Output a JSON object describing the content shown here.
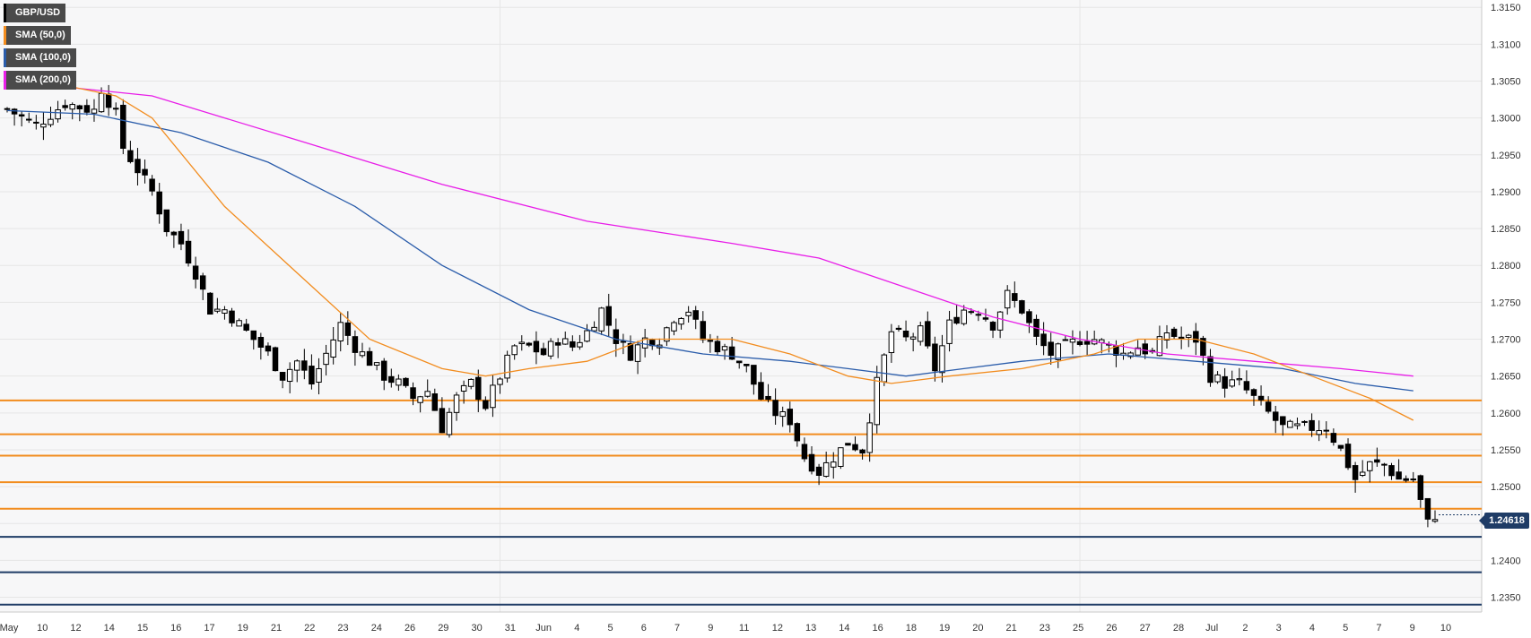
{
  "chart_data": {
    "type": "candlestick",
    "symbol": "GBP/USD",
    "legend": [
      {
        "label": "GBP/USD",
        "color": "#000000"
      },
      {
        "label": "SMA (50,0)",
        "color": "#f28c1e"
      },
      {
        "label": "SMA (100,0)",
        "color": "#2a5caa"
      },
      {
        "label": "SMA (200,0)",
        "color": "#e81ee8"
      }
    ],
    "ylim": [
      1.233,
      1.316
    ],
    "y_ticks": [
      "1.3150",
      "1.3100",
      "1.3050",
      "1.3000",
      "1.2950",
      "1.2900",
      "1.2850",
      "1.2800",
      "1.2750",
      "1.2700",
      "1.2650",
      "1.2600",
      "1.2550",
      "1.2500",
      "1.2450",
      "1.2400",
      "1.2350"
    ],
    "x_labels": [
      "May",
      "10",
      "12",
      "14",
      "15",
      "16",
      "17",
      "19",
      "21",
      "22",
      "23",
      "24",
      "26",
      "29",
      "30",
      "31",
      "Jun",
      "4",
      "5",
      "6",
      "7",
      "9",
      "11",
      "12",
      "13",
      "14",
      "16",
      "18",
      "19",
      "20",
      "21",
      "23",
      "25",
      "26",
      "27",
      "28",
      "Jul",
      "2",
      "3",
      "4",
      "5",
      "7",
      "9",
      "10"
    ],
    "current_price": "1.24618",
    "horizontal_levels": [
      {
        "value": 1.2617,
        "color": "#f28c1e"
      },
      {
        "value": 1.2571,
        "color": "#f28c1e"
      },
      {
        "value": 1.2542,
        "color": "#f28c1e"
      },
      {
        "value": 1.2506,
        "color": "#f28c1e"
      },
      {
        "value": 1.247,
        "color": "#f28c1e"
      },
      {
        "value": 1.2432,
        "color": "#1f3c66"
      },
      {
        "value": 1.2384,
        "color": "#1f3c66"
      },
      {
        "value": 1.234,
        "color": "#1f3c66"
      }
    ],
    "close_path": [
      [
        0,
        1.3012
      ],
      [
        4,
        1.299
      ],
      [
        8,
        1.302
      ],
      [
        12,
        1.301
      ],
      [
        13,
        1.304
      ],
      [
        15,
        1.3005
      ],
      [
        16,
        1.296
      ],
      [
        18,
        1.293
      ],
      [
        20,
        1.29
      ],
      [
        22,
        1.285
      ],
      [
        24,
        1.283
      ],
      [
        26,
        1.279
      ],
      [
        28,
        1.274
      ],
      [
        30,
        1.274
      ],
      [
        32,
        1.272
      ],
      [
        34,
        1.27
      ],
      [
        36,
        1.268
      ],
      [
        38,
        1.265
      ],
      [
        40,
        1.267
      ],
      [
        42,
        1.264
      ],
      [
        44,
        1.268
      ],
      [
        46,
        1.272
      ],
      [
        48,
        1.269
      ],
      [
        50,
        1.267
      ],
      [
        52,
        1.265
      ],
      [
        54,
        1.264
      ],
      [
        56,
        1.262
      ],
      [
        58,
        1.263
      ],
      [
        60,
        1.258
      ],
      [
        62,
        1.262
      ],
      [
        64,
        1.264
      ],
      [
        66,
        1.261
      ],
      [
        68,
        1.265
      ],
      [
        70,
        1.269
      ],
      [
        72,
        1.269
      ],
      [
        74,
        1.268
      ],
      [
        76,
        1.27
      ],
      [
        78,
        1.269
      ],
      [
        80,
        1.271
      ],
      [
        82,
        1.274
      ],
      [
        84,
        1.27
      ],
      [
        86,
        1.268
      ],
      [
        88,
        1.27
      ],
      [
        90,
        1.27
      ],
      [
        92,
        1.273
      ],
      [
        94,
        1.274
      ],
      [
        96,
        1.27
      ],
      [
        98,
        1.269
      ],
      [
        100,
        1.268
      ],
      [
        102,
        1.266
      ],
      [
        104,
        1.262
      ],
      [
        106,
        1.26
      ],
      [
        108,
        1.259
      ],
      [
        110,
        1.254
      ],
      [
        112,
        1.252
      ],
      [
        114,
        1.254
      ],
      [
        116,
        1.256
      ],
      [
        118,
        1.255
      ],
      [
        120,
        1.264
      ],
      [
        122,
        1.271
      ],
      [
        124,
        1.27
      ],
      [
        126,
        1.271
      ],
      [
        128,
        1.266
      ],
      [
        130,
        1.272
      ],
      [
        132,
        1.274
      ],
      [
        134,
        1.274
      ],
      [
        136,
        1.272
      ],
      [
        138,
        1.276
      ],
      [
        140,
        1.274
      ],
      [
        142,
        1.27
      ],
      [
        144,
        1.268
      ],
      [
        146,
        1.269
      ],
      [
        148,
        1.27
      ],
      [
        150,
        1.27
      ],
      [
        152,
        1.269
      ],
      [
        154,
        1.268
      ],
      [
        156,
        1.269
      ],
      [
        158,
        1.268
      ],
      [
        160,
        1.271
      ],
      [
        162,
        1.27
      ],
      [
        164,
        1.27
      ],
      [
        166,
        1.265
      ],
      [
        168,
        1.264
      ],
      [
        170,
        1.264
      ],
      [
        172,
        1.262
      ],
      [
        174,
        1.26
      ],
      [
        176,
        1.258
      ],
      [
        178,
        1.258
      ],
      [
        180,
        1.258
      ],
      [
        182,
        1.258
      ],
      [
        184,
        1.255
      ],
      [
        186,
        1.251
      ],
      [
        188,
        1.253
      ],
      [
        190,
        1.253
      ],
      [
        192,
        1.251
      ],
      [
        194,
        1.251
      ],
      [
        196,
        1.245
      ],
      [
        197,
        1.2462
      ]
    ],
    "sma50": [
      [
        0,
        1.306
      ],
      [
        15,
        1.303
      ],
      [
        20,
        1.3
      ],
      [
        30,
        1.288
      ],
      [
        40,
        1.279
      ],
      [
        50,
        1.27
      ],
      [
        60,
        1.266
      ],
      [
        66,
        1.265
      ],
      [
        72,
        1.266
      ],
      [
        80,
        1.267
      ],
      [
        88,
        1.27
      ],
      [
        94,
        1.27
      ],
      [
        100,
        1.27
      ],
      [
        108,
        1.268
      ],
      [
        116,
        1.265
      ],
      [
        122,
        1.264
      ],
      [
        130,
        1.265
      ],
      [
        140,
        1.266
      ],
      [
        150,
        1.268
      ],
      [
        156,
        1.27
      ],
      [
        164,
        1.27
      ],
      [
        172,
        1.268
      ],
      [
        180,
        1.265
      ],
      [
        188,
        1.262
      ],
      [
        194,
        1.259
      ]
    ],
    "sma100": [
      [
        0,
        1.301
      ],
      [
        12,
        1.3005
      ],
      [
        24,
        1.298
      ],
      [
        36,
        1.294
      ],
      [
        48,
        1.288
      ],
      [
        60,
        1.28
      ],
      [
        72,
        1.274
      ],
      [
        84,
        1.27
      ],
      [
        96,
        1.268
      ],
      [
        108,
        1.267
      ],
      [
        116,
        1.266
      ],
      [
        124,
        1.265
      ],
      [
        132,
        1.266
      ],
      [
        140,
        1.267
      ],
      [
        152,
        1.268
      ],
      [
        164,
        1.267
      ],
      [
        176,
        1.266
      ],
      [
        186,
        1.264
      ],
      [
        194,
        1.263
      ]
    ],
    "sma200": [
      [
        0,
        1.305
      ],
      [
        20,
        1.303
      ],
      [
        40,
        1.297
      ],
      [
        60,
        1.291
      ],
      [
        80,
        1.286
      ],
      [
        100,
        1.283
      ],
      [
        112,
        1.281
      ],
      [
        124,
        1.277
      ],
      [
        136,
        1.273
      ],
      [
        148,
        1.27
      ],
      [
        160,
        1.268
      ],
      [
        172,
        1.267
      ],
      [
        184,
        1.266
      ],
      [
        194,
        1.265
      ]
    ]
  }
}
